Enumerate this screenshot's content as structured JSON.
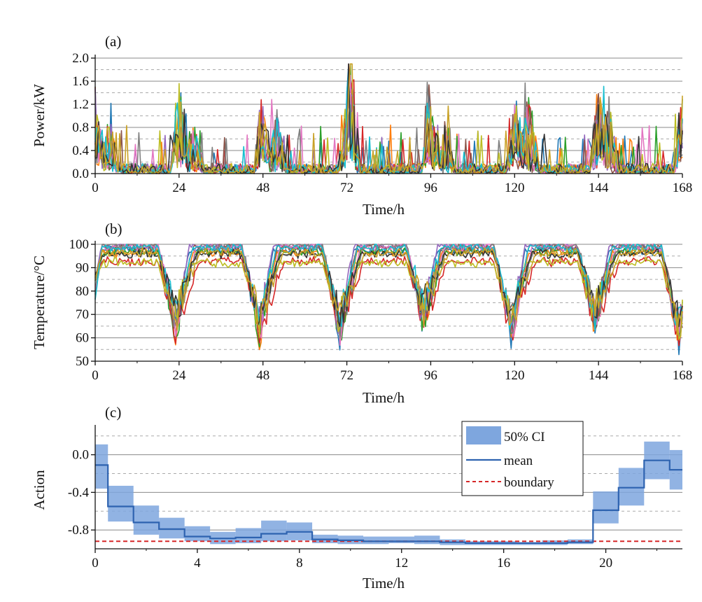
{
  "chart_data": [
    {
      "type": "line",
      "panel_label": "(a)",
      "xlabel": "Time/h",
      "ylabel": "Power/kW",
      "xlim": [
        0,
        168
      ],
      "ylim": [
        0,
        2.0
      ],
      "x_ticks": [
        0,
        24,
        48,
        72,
        96,
        120,
        144,
        168
      ],
      "y_ticks": [
        0.0,
        0.4,
        0.8,
        1.2,
        1.6,
        2.0
      ],
      "y_tick_labels": [
        "0.0",
        "0.4",
        "0.8",
        "1.2",
        "1.6",
        "2.0"
      ],
      "grid": "horizontal",
      "series_count": 12,
      "series_colors": [
        "#1f77b4",
        "#ff7f0e",
        "#2ca02c",
        "#d62728",
        "#9467bd",
        "#8c564b",
        "#e377c2",
        "#7f7f7f",
        "#bcbd22",
        "#17becf",
        "#333333",
        "#c9a227"
      ],
      "daily_peak_hours": [
        0,
        24,
        48,
        72,
        96,
        120,
        144
      ],
      "daily_peak_max_kW": [
        1.48,
        1.62,
        1.25,
        1.86,
        1.22,
        1.5,
        1.46
      ],
      "evening_peak_hours": [
        4,
        28,
        52,
        73,
        100,
        124,
        147
      ],
      "evening_peak_max_kW": [
        1.0,
        0.9,
        1.1,
        1.7,
        0.9,
        1.45,
        1.25
      ],
      "baseline_kW": 0.12
    },
    {
      "type": "line",
      "panel_label": "(b)",
      "xlabel": "Time/h",
      "ylabel": "Temperature/°C",
      "xlim": [
        0,
        168
      ],
      "ylim": [
        50,
        100
      ],
      "x_ticks": [
        0,
        24,
        48,
        72,
        96,
        120,
        144,
        168
      ],
      "y_ticks": [
        50,
        60,
        70,
        80,
        90,
        100
      ],
      "y_tick_labels": [
        "50",
        "60",
        "70",
        "80",
        "90",
        "100"
      ],
      "grid": "horizontal",
      "series_count": 12,
      "series_colors": [
        "#1f77b4",
        "#ff7f0e",
        "#2ca02c",
        "#d62728",
        "#9467bd",
        "#8c564b",
        "#e377c2",
        "#7f7f7f",
        "#bcbd22",
        "#17becf",
        "#333333",
        "#c9a227"
      ],
      "dip_hours": [
        23,
        47,
        70,
        94,
        119,
        143,
        167
      ],
      "dip_min_C": [
        55,
        53,
        53,
        58,
        53,
        57,
        50
      ],
      "plateau_C": 100
    },
    {
      "type": "area",
      "panel_label": "(c)",
      "xlabel": "Time/h",
      "ylabel": "Action",
      "xlim": [
        0,
        23
      ],
      "ylim": [
        -1.0,
        0.28
      ],
      "x_ticks": [
        0,
        4,
        8,
        12,
        16,
        20
      ],
      "y_ticks": [
        -0.8,
        -0.4,
        0.0
      ],
      "y_tick_labels": [
        "-0.8",
        "-0.4",
        "0.0"
      ],
      "grid": "horizontal",
      "x": [
        0,
        1,
        2,
        3,
        4,
        5,
        6,
        7,
        8,
        9,
        10,
        11,
        12,
        13,
        14,
        15,
        16,
        17,
        18,
        19,
        20,
        21,
        22,
        23
      ],
      "series": [
        {
          "name": "mean",
          "color": "#2e63b0",
          "step": "mid",
          "values": [
            -0.11,
            -0.55,
            -0.72,
            -0.79,
            -0.87,
            -0.89,
            -0.88,
            -0.84,
            -0.82,
            -0.9,
            -0.91,
            -0.92,
            -0.92,
            -0.92,
            -0.93,
            -0.94,
            -0.94,
            -0.94,
            -0.94,
            -0.93,
            -0.59,
            -0.35,
            -0.06,
            -0.16
          ]
        },
        {
          "name": "50% CI",
          "color": "#7ea6de",
          "lower": [
            -0.36,
            -0.71,
            -0.85,
            -0.89,
            -0.92,
            -0.95,
            -0.94,
            -0.92,
            -0.91,
            -0.94,
            -0.95,
            -0.95,
            -0.94,
            -0.95,
            -0.96,
            -0.96,
            -0.96,
            -0.96,
            -0.96,
            -0.95,
            -0.73,
            -0.54,
            -0.26,
            -0.37
          ],
          "upper": [
            0.11,
            -0.33,
            -0.54,
            -0.67,
            -0.76,
            -0.82,
            -0.78,
            -0.7,
            -0.72,
            -0.85,
            -0.86,
            -0.87,
            -0.87,
            -0.86,
            -0.9,
            -0.92,
            -0.92,
            -0.93,
            -0.91,
            -0.9,
            -0.39,
            -0.14,
            0.14,
            0.05
          ]
        },
        {
          "name": "boundary",
          "color": "#d62728",
          "dashed": true,
          "value": -0.92
        }
      ],
      "legend": [
        "50% CI",
        "mean",
        "boundary"
      ],
      "legend_position": "top-right"
    }
  ]
}
